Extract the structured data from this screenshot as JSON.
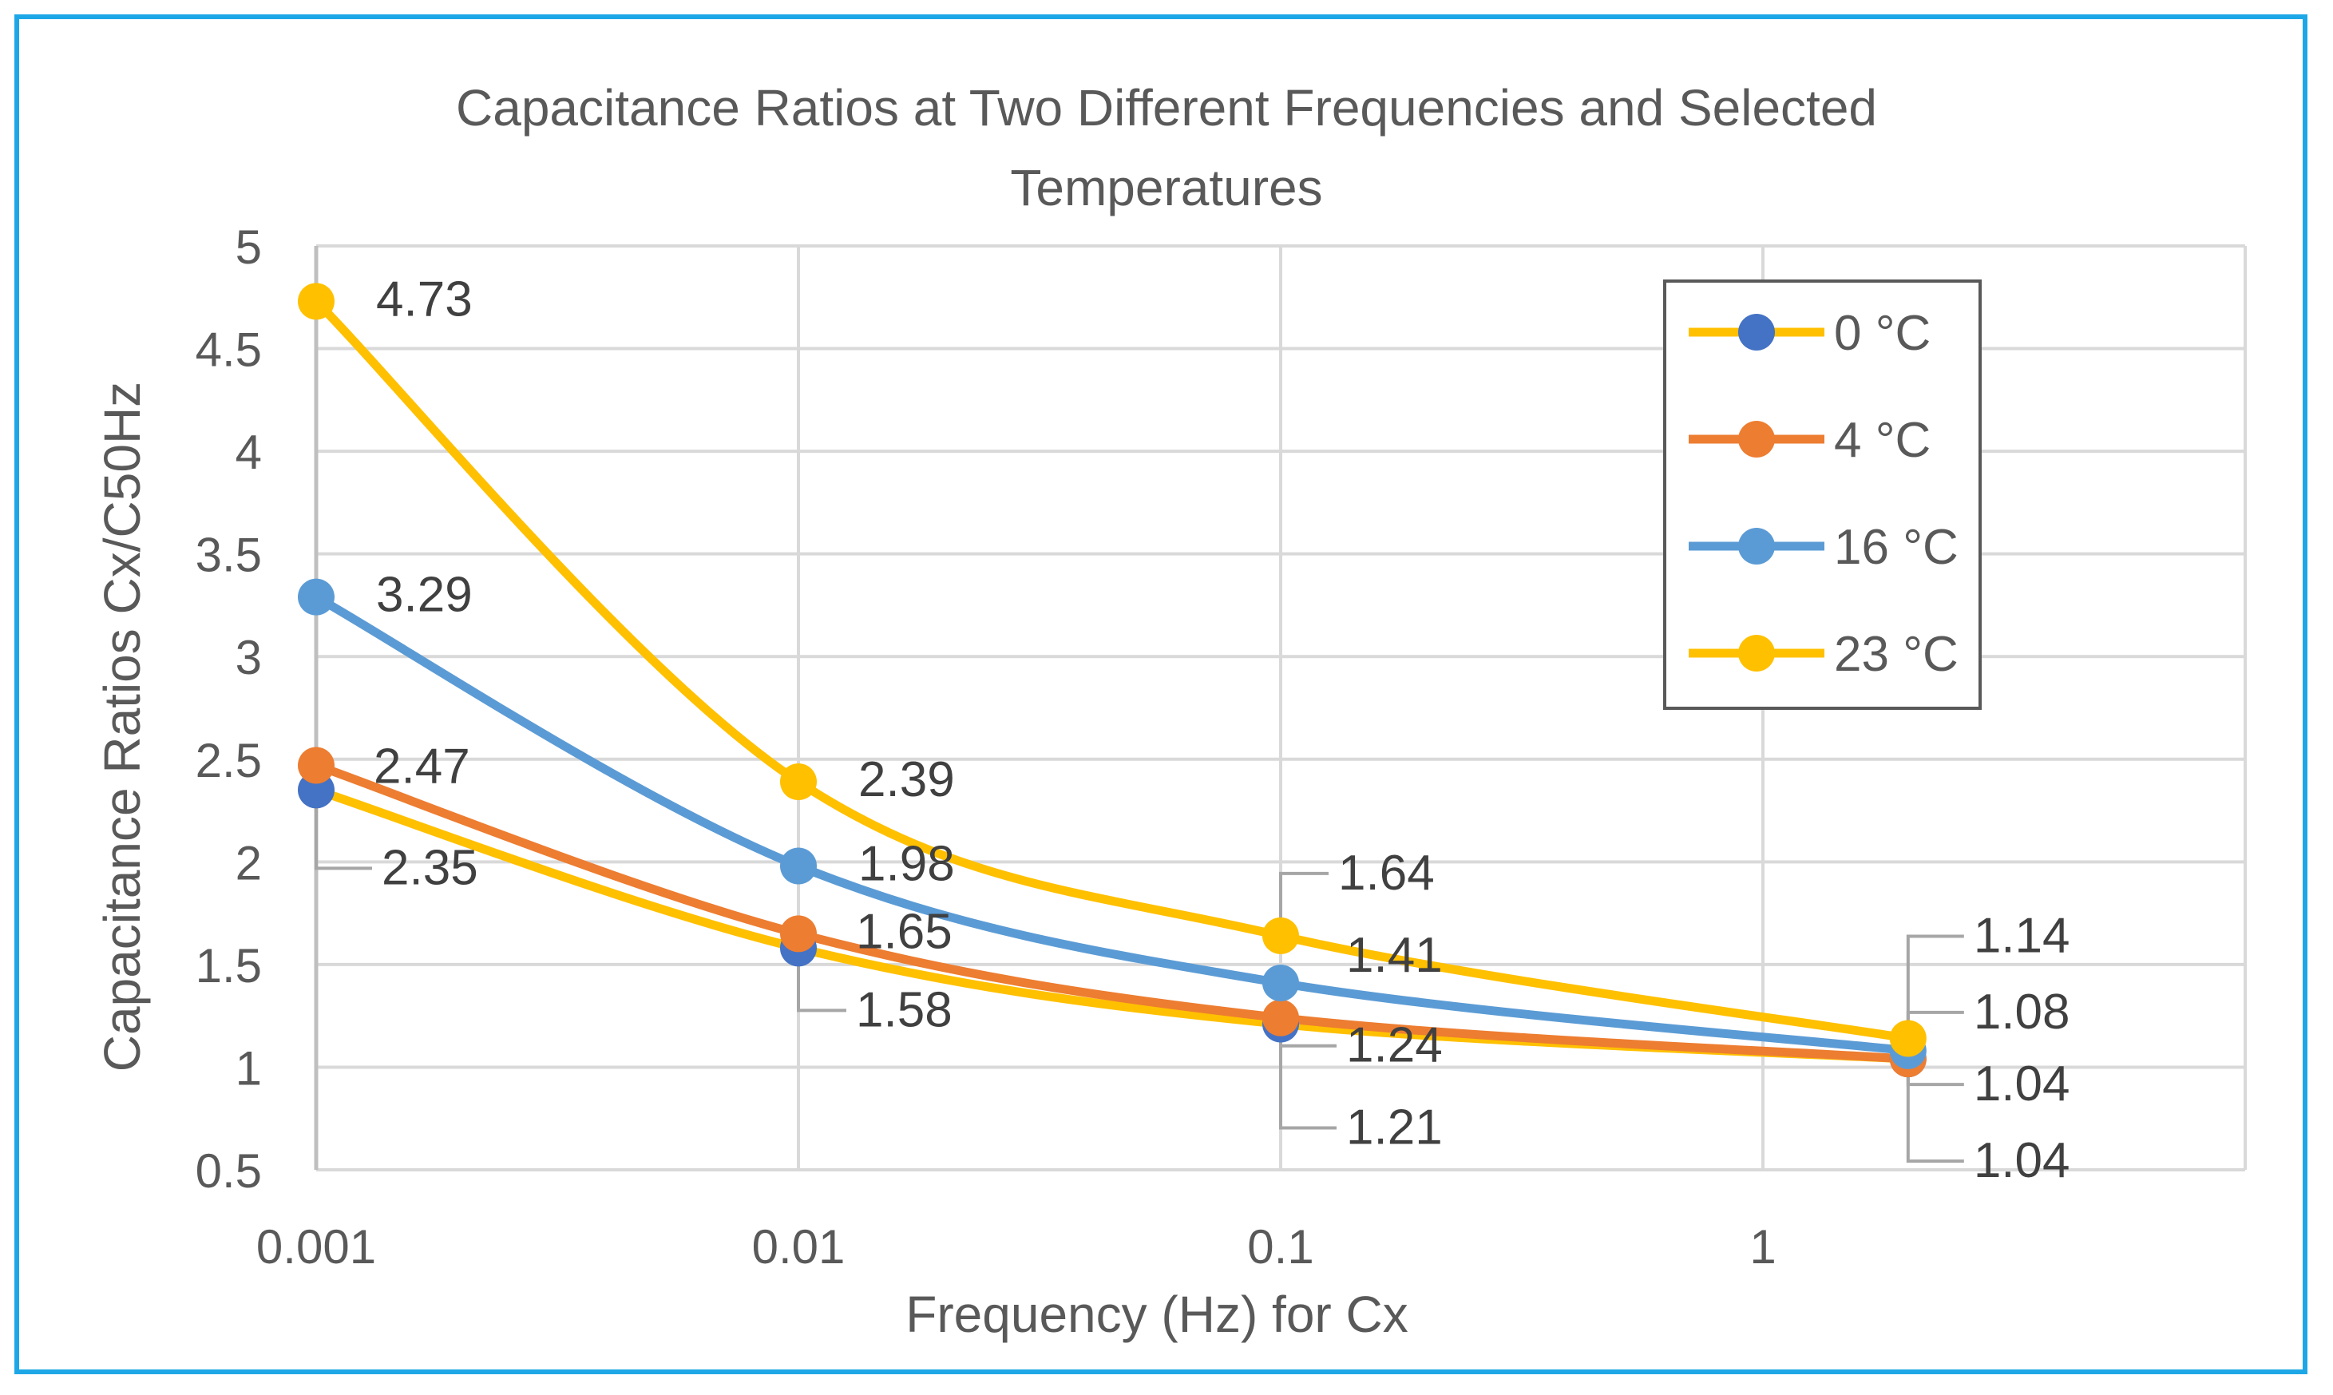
{
  "chart_data": {
    "type": "line",
    "title": "Capacitance Ratios at Two Different Frequencies and Selected Temperatures",
    "xlabel": "Frequency (Hz) for Cx",
    "ylabel": "Capacitance Ratios Cx/C50Hz",
    "x_scale": "log",
    "xlim": [
      0.001,
      10
    ],
    "ylim": [
      0.5,
      5
    ],
    "x_ticks": [
      {
        "value": 0.001,
        "label": "0.001"
      },
      {
        "value": 0.01,
        "label": "0.01"
      },
      {
        "value": 0.1,
        "label": "0.1"
      },
      {
        "value": 1,
        "label": "1"
      }
    ],
    "y_ticks": [
      {
        "value": 0.5,
        "label": "0.5"
      },
      {
        "value": 1,
        "label": "1"
      },
      {
        "value": 1.5,
        "label": "1.5"
      },
      {
        "value": 2,
        "label": "2"
      },
      {
        "value": 2.5,
        "label": "2.5"
      },
      {
        "value": 3,
        "label": "3"
      },
      {
        "value": 3.5,
        "label": "3.5"
      },
      {
        "value": 4,
        "label": "4"
      },
      {
        "value": 4.5,
        "label": "4.5"
      },
      {
        "value": 5,
        "label": "5"
      }
    ],
    "x": [
      0.001,
      0.01,
      0.1,
      2
    ],
    "grid": true,
    "legend_position": "top-right",
    "series": [
      {
        "name": "0 °C",
        "line_color": "#FFC000",
        "marker_color": "#4472C4",
        "values": [
          2.35,
          1.58,
          1.21,
          1.04
        ],
        "labels": [
          "2.35",
          "1.58",
          "1.21",
          "1.04"
        ]
      },
      {
        "name": "4 °C",
        "line_color": "#ED7D31",
        "marker_color": "#ED7D31",
        "values": [
          2.47,
          1.65,
          1.24,
          1.04
        ],
        "labels": [
          "2.47",
          "1.65",
          "1.24",
          "1.04"
        ]
      },
      {
        "name": "16 °C",
        "line_color": "#5B9BD5",
        "marker_color": "#5B9BD5",
        "values": [
          3.29,
          1.98,
          1.41,
          1.08
        ],
        "labels": [
          "3.29",
          "1.98",
          "1.41",
          "1.08"
        ]
      },
      {
        "name": "23 °C",
        "line_color": "#FFC000",
        "marker_color": "#FFC000",
        "values": [
          4.73,
          2.39,
          1.64,
          1.14
        ],
        "labels": [
          "4.73",
          "2.39",
          "1.64",
          "1.14"
        ]
      }
    ]
  }
}
